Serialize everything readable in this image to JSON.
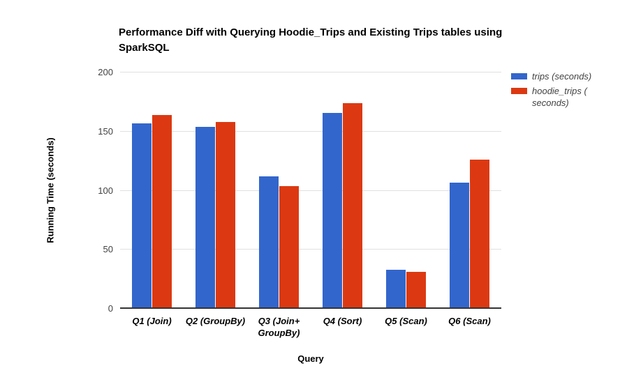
{
  "page": {
    "background": "#ffffff"
  },
  "chart_data": {
    "type": "bar",
    "title": "Performance Diff with Querying Hoodie_Trips and Existing Trips tables using SparkSQL",
    "xlabel": "Query",
    "ylabel": "Running Time (seconds)",
    "ylim": [
      0,
      200
    ],
    "yticks": [
      0,
      50,
      100,
      150,
      200
    ],
    "grid": true,
    "legend_position": "right",
    "categories": [
      "Q1 (Join)",
      "Q2 (GroupBy)",
      "Q3 (Join+\nGroupBy)",
      "Q4 (Sort)",
      "Q5 (Scan)",
      "Q6 (Scan)"
    ],
    "series": [
      {
        "name": "trips (seconds)",
        "color": "#3366CC",
        "values": [
          157,
          154,
          112,
          166,
          33,
          107
        ]
      },
      {
        "name": "hoodie_trips (seconds)",
        "color": "#DC3912",
        "values": [
          164,
          158,
          104,
          174,
          31,
          126
        ]
      }
    ]
  },
  "legend": {
    "items": [
      {
        "label": "trips (seconds)",
        "color": "#3366CC"
      },
      {
        "label": "hoodie_trips (\nseconds)",
        "color": "#DC3912"
      }
    ]
  },
  "colors": {
    "grid_line": "#e0e0e0",
    "axis_line": "#333333",
    "tick_text": "#424242",
    "label_text": "#000000"
  }
}
